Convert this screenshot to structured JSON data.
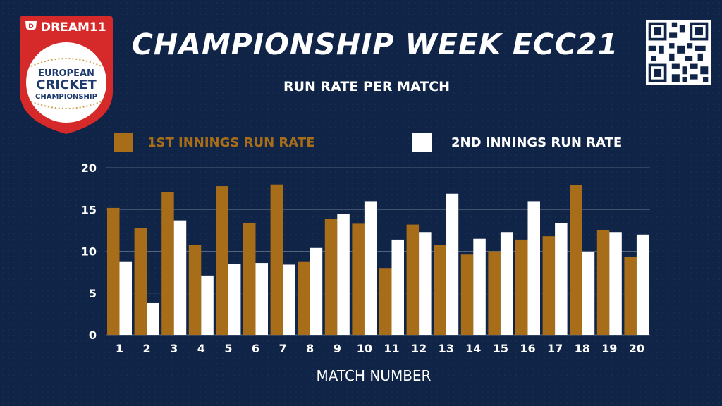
{
  "header": {
    "title": "CHAMPIONSHIP WEEK ECC21",
    "logo": {
      "brand": "DREAM11",
      "line1": "EUROPEAN",
      "line2": "CRICKET",
      "line3": "CHAMPIONSHIP"
    },
    "qr_icon": "qr-code-icon"
  },
  "colors": {
    "background": "#0f2447",
    "first_innings": "#a86d18",
    "second_innings": "#ffffff",
    "logo_red": "#d62a2a"
  },
  "chart_data": {
    "type": "bar",
    "title": "RUN RATE PER MATCH",
    "xlabel": "MATCH NUMBER",
    "ylabel": "",
    "ylim": [
      0,
      20
    ],
    "yticks": [
      0,
      5,
      10,
      15,
      20
    ],
    "grid": true,
    "legend_position": "top",
    "categories": [
      "1",
      "2",
      "3",
      "4",
      "5",
      "6",
      "7",
      "8",
      "9",
      "10",
      "11",
      "12",
      "13",
      "14",
      "15",
      "16",
      "17",
      "18",
      "19",
      "20"
    ],
    "series": [
      {
        "name": "1ST INNINGS RUN RATE",
        "color": "#a86d18",
        "values": [
          15.2,
          12.8,
          17.1,
          10.8,
          17.8,
          13.4,
          18.0,
          8.8,
          13.9,
          13.3,
          8.0,
          13.2,
          10.8,
          9.6,
          10.0,
          11.4,
          11.8,
          17.9,
          12.5,
          9.3
        ]
      },
      {
        "name": "2ND INNINGS RUN RATE",
        "color": "#ffffff",
        "values": [
          8.8,
          3.8,
          13.7,
          7.1,
          8.5,
          8.6,
          8.4,
          10.4,
          14.5,
          16.0,
          11.4,
          12.3,
          16.9,
          11.5,
          12.3,
          16.0,
          13.4,
          9.9,
          12.3,
          12.0
        ]
      }
    ]
  }
}
